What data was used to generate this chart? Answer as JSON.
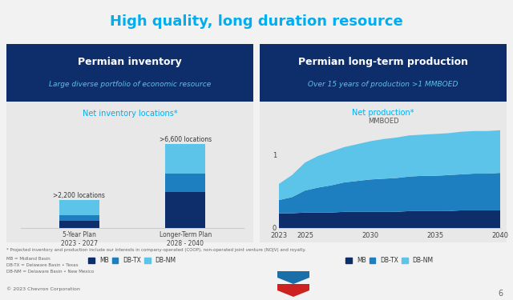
{
  "title": "High quality, long duration resource",
  "title_color": "#00AEEF",
  "bg_color": "#f2f2f2",
  "header_bg": "#0D2D6B",
  "chart_bg": "#e8e8e8",
  "left_panel_title": "Permian inventory",
  "left_panel_subtitle": "Large diverse portfolio of economic resource",
  "right_panel_title": "Permian long-term production",
  "right_panel_subtitle": "Over 15 years of production >1 MMBOED",
  "bar_title": "Net inventory locations",
  "bar_title_sup": "*",
  "bar_title_color": "#00AEEF",
  "area_title": "Net production",
  "area_title_sup": "*",
  "area_subtitle": "MMBOED",
  "area_title_color": "#00AEEF",
  "color_MB": "#0D2D6B",
  "color_DBTX": "#1E7FC0",
  "color_DBNM": "#5BC4E8",
  "bar_categories": [
    "5-Year Plan\n2023 - 2027",
    "Longer-Term Plan\n2028 - 2040"
  ],
  "bar_MB": [
    550,
    2800
  ],
  "bar_DBTX": [
    450,
    1500
  ],
  "bar_DBNM": [
    1200,
    2300
  ],
  "bar_labels": [
    ">2,200 locations",
    ">6,600 locations"
  ],
  "area_years": [
    2023,
    2024,
    2025,
    2026,
    2027,
    2028,
    2029,
    2030,
    2031,
    2032,
    2033,
    2034,
    2035,
    2036,
    2037,
    2038,
    2039,
    2040
  ],
  "area_MB": [
    0.2,
    0.2,
    0.21,
    0.21,
    0.21,
    0.22,
    0.22,
    0.22,
    0.22,
    0.22,
    0.23,
    0.23,
    0.23,
    0.23,
    0.24,
    0.24,
    0.24,
    0.24
  ],
  "area_DBTX": [
    0.18,
    0.22,
    0.3,
    0.34,
    0.37,
    0.4,
    0.42,
    0.44,
    0.45,
    0.46,
    0.47,
    0.48,
    0.48,
    0.49,
    0.49,
    0.5,
    0.5,
    0.51
  ],
  "area_DBNM": [
    0.22,
    0.3,
    0.38,
    0.43,
    0.46,
    0.48,
    0.5,
    0.52,
    0.54,
    0.55,
    0.56,
    0.56,
    0.57,
    0.57,
    0.58,
    0.58,
    0.58,
    0.58
  ],
  "footnote": "* Projected inventory and production include our interests in company-operated (COOP), non-operated joint venture (NOJV) and royalty.",
  "footnote2": "MB = Midland Basin",
  "footnote3": "DB-TX = Delaware Basin • Texas",
  "footnote4": "DB-NM = Delaware Basin • New Mexico",
  "copyright": "© 2023 Chevron Corporation",
  "page_num": "6"
}
